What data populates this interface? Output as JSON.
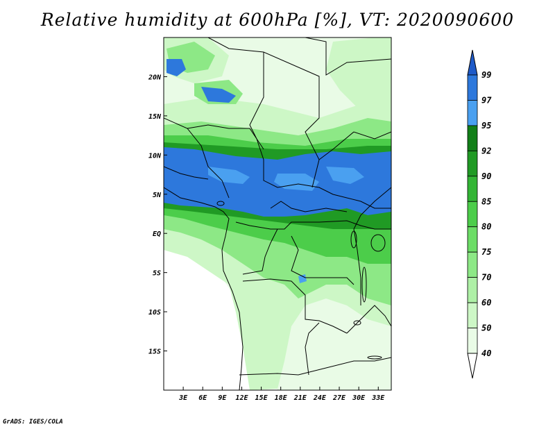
{
  "title": "Relative humidity at 600hPa [%], VT: 2020090600",
  "footer": "GrADS: IGES/COLA",
  "map": {
    "lon_range": [
      0,
      35
    ],
    "lat_range": [
      -20,
      25
    ],
    "lon_ticks": [
      "3E",
      "6E",
      "9E",
      "12E",
      "15E",
      "18E",
      "21E",
      "24E",
      "27E",
      "30E",
      "33E"
    ],
    "lon_tick_values": [
      3,
      6,
      9,
      12,
      15,
      18,
      21,
      24,
      27,
      30,
      33
    ],
    "lat_ticks": [
      "20N",
      "15N",
      "10N",
      "5N",
      "EQ",
      "5S",
      "10S",
      "15S"
    ],
    "lat_tick_values": [
      20,
      15,
      10,
      5,
      0,
      -5,
      -10,
      -15
    ]
  },
  "colorbar": {
    "labels": [
      "40",
      "50",
      "60",
      "70",
      "75",
      "80",
      "85",
      "90",
      "92",
      "95",
      "97",
      "99"
    ],
    "colors": [
      "#ffffff",
      "#e9fbe6",
      "#cdf7c6",
      "#aef0a6",
      "#8de886",
      "#6cdd66",
      "#4ccd4a",
      "#33b535",
      "#209a24",
      "#127f18",
      "#4aa0f0",
      "#2d78dc",
      "#1e5ac8"
    ]
  },
  "legend_colors": {
    "coast": "#000000",
    "background": "#ffffff"
  }
}
